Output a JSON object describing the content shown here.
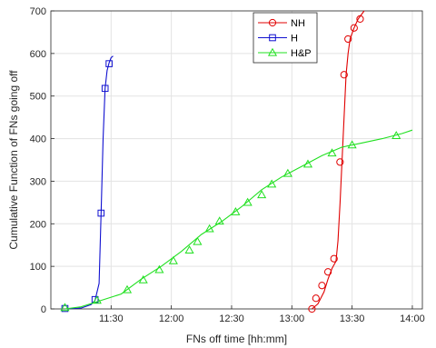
{
  "chart_data": {
    "type": "line",
    "xlabel": "FNs off time [hh:mm]",
    "ylabel": "Cumulative Function of FNs going off",
    "xlim": [
      "11:00",
      "14:05"
    ],
    "ylim": [
      0,
      700
    ],
    "x_tick_labels": [
      "11:30",
      "12:00",
      "12:30",
      "13:00",
      "13:30",
      "14:00"
    ],
    "y_tick_labels": [
      "0",
      "100",
      "200",
      "300",
      "400",
      "500",
      "600",
      "700"
    ],
    "grid": true,
    "legend_position": "top-center",
    "series": [
      {
        "name": "NH",
        "color": "#e00000",
        "marker": "circle",
        "line": [
          [
            "13:10",
            0
          ],
          [
            "13:13",
            12
          ],
          [
            "13:16",
            40
          ],
          [
            "13:18",
            70
          ],
          [
            "13:20",
            95
          ],
          [
            "13:22",
            112
          ],
          [
            "13:23",
            160
          ],
          [
            "13:24",
            250
          ],
          [
            "13:25",
            350
          ],
          [
            "13:26",
            450
          ],
          [
            "13:27",
            550
          ],
          [
            "13:28",
            600
          ],
          [
            "13:29",
            634
          ],
          [
            "13:31",
            660
          ],
          [
            "13:33",
            681
          ],
          [
            "13:36",
            700
          ]
        ],
        "markers": [
          [
            "13:10",
            0
          ],
          [
            "13:12",
            25
          ],
          [
            "13:15",
            55
          ],
          [
            "13:18",
            87
          ],
          [
            "13:21",
            118
          ],
          [
            "13:24",
            345
          ],
          [
            "13:26",
            550
          ],
          [
            "13:28",
            634
          ],
          [
            "13:31",
            660
          ],
          [
            "13:34",
            681
          ]
        ]
      },
      {
        "name": "H",
        "color": "#1010d0",
        "marker": "square",
        "line": [
          [
            "11:07",
            0
          ],
          [
            "11:15",
            2
          ],
          [
            "11:20",
            10
          ],
          [
            "11:22",
            20
          ],
          [
            "11:24",
            60
          ],
          [
            "11:25",
            225
          ],
          [
            "11:26",
            400
          ],
          [
            "11:27",
            518
          ],
          [
            "11:28",
            560
          ],
          [
            "11:29",
            578
          ],
          [
            "11:30",
            590
          ],
          [
            "11:31",
            594
          ]
        ],
        "markers": [
          [
            "11:07",
            1
          ],
          [
            "11:22",
            22
          ],
          [
            "11:25",
            225
          ],
          [
            "11:27",
            518
          ],
          [
            "11:29",
            576
          ]
        ]
      },
      {
        "name": "H&P",
        "color": "#20e020",
        "marker": "triangle",
        "line": [
          [
            "11:07",
            0
          ],
          [
            "11:15",
            5
          ],
          [
            "11:25",
            20
          ],
          [
            "11:35",
            35
          ],
          [
            "11:45",
            70
          ],
          [
            "11:55",
            100
          ],
          [
            "12:05",
            135
          ],
          [
            "12:15",
            175
          ],
          [
            "12:25",
            205
          ],
          [
            "12:35",
            240
          ],
          [
            "12:45",
            280
          ],
          [
            "12:55",
            310
          ],
          [
            "13:05",
            335
          ],
          [
            "13:15",
            360
          ],
          [
            "13:25",
            380
          ],
          [
            "13:35",
            390
          ],
          [
            "13:45",
            400
          ],
          [
            "13:55",
            412
          ],
          [
            "14:00",
            420
          ]
        ],
        "markers": [
          [
            "11:07",
            3
          ],
          [
            "11:23",
            20
          ],
          [
            "11:38",
            45
          ],
          [
            "11:46",
            68
          ],
          [
            "11:54",
            92
          ],
          [
            "12:01",
            113
          ],
          [
            "12:09",
            138
          ],
          [
            "12:13",
            158
          ],
          [
            "12:19",
            188
          ],
          [
            "12:24",
            206
          ],
          [
            "12:32",
            228
          ],
          [
            "12:38",
            250
          ],
          [
            "12:45",
            268
          ],
          [
            "12:50",
            293
          ],
          [
            "12:58",
            318
          ],
          [
            "13:08",
            340
          ],
          [
            "13:20",
            366
          ],
          [
            "13:30",
            385
          ],
          [
            "13:52",
            407
          ]
        ]
      }
    ]
  }
}
